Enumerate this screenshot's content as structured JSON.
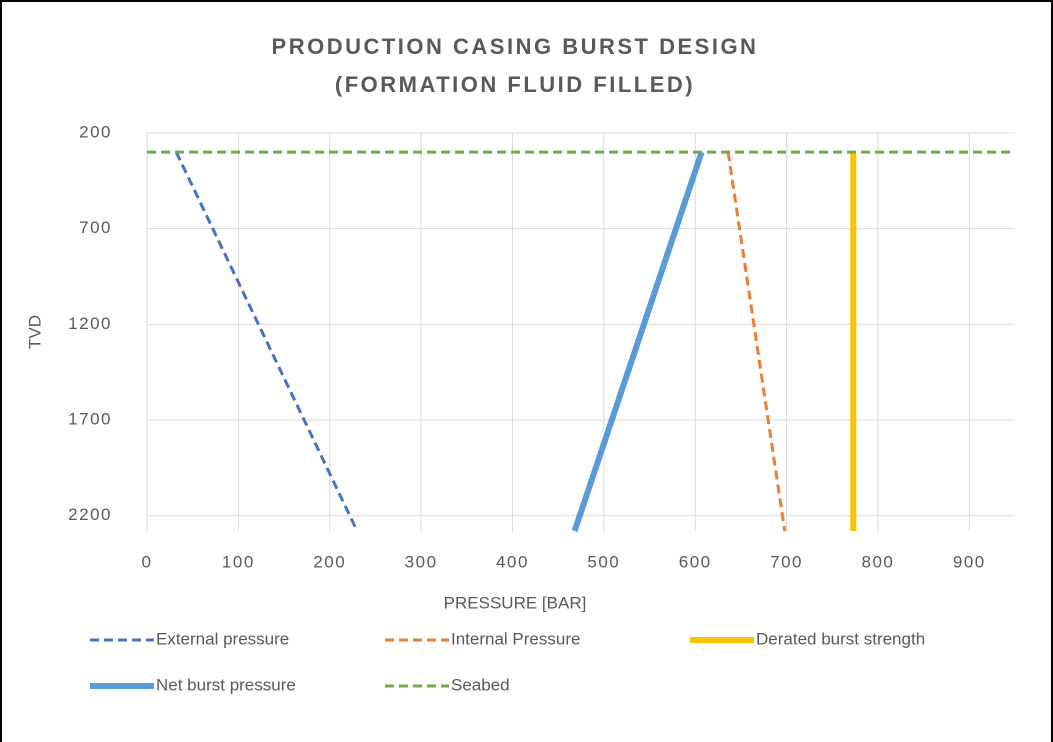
{
  "chart_data": {
    "type": "line",
    "title": [
      "PRODUCTION CASING BURST DESIGN",
      "(FORMATION FLUID FILLED)"
    ],
    "x_label": "PRESSURE [BAR]",
    "y_label": "TVD",
    "xlim": [
      0,
      950
    ],
    "xticks": [
      0,
      100,
      200,
      300,
      400,
      500,
      600,
      700,
      800,
      900
    ],
    "ylim": [
      200,
      2280
    ],
    "yticks": [
      200,
      700,
      1200,
      1700,
      2200
    ],
    "y_inverted": true,
    "grid": true,
    "legend": "bottom",
    "series": [
      {
        "name": "External pressure",
        "color": "#4472c4",
        "dashed": true,
        "x": [
          32,
          230
        ],
        "values": [
          300,
          2280
        ]
      },
      {
        "name": "Internal Pressure",
        "color": "#ed7d31",
        "dashed": true,
        "x": [
          636,
          698
        ],
        "values": [
          300,
          2280
        ]
      },
      {
        "name": "Derated burst strength",
        "color": "#ffc000",
        "dashed": false,
        "x": [
          773,
          773
        ],
        "values": [
          300,
          2280
        ]
      },
      {
        "name": "Net burst pressure",
        "color": "#5b9bd5",
        "dashed": false,
        "x": [
          607,
          468
        ],
        "values": [
          300,
          2280
        ]
      },
      {
        "name": "Seabed",
        "color": "#70ad47",
        "dashed": true,
        "x": [
          0,
          950
        ],
        "values": [
          300,
          300
        ]
      }
    ]
  }
}
